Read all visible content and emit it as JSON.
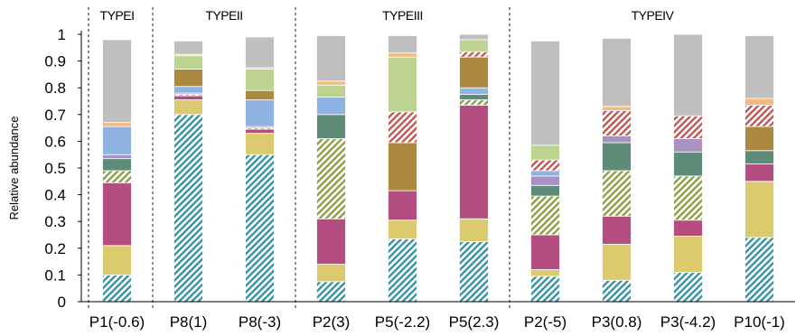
{
  "chart_data": {
    "type": "bar",
    "stacked": true,
    "ylabel": "Relative  abundance",
    "ylim": [
      0,
      1
    ],
    "yticks": [
      "0",
      "0.1",
      "0.2",
      "0.3",
      "0.4",
      "0.5",
      "0.6",
      "0.7",
      "0.8",
      "0.9",
      "1"
    ],
    "grid": false,
    "legend": "none",
    "groups": [
      {
        "label": "TYPEI",
        "categories": [
          "P1(-0.6)"
        ]
      },
      {
        "label": "TYPEII",
        "categories": [
          "P8(1)",
          "P8(-3)"
        ]
      },
      {
        "label": "TYPEIII",
        "categories": [
          "P2(3)",
          "P5(-2.2)",
          "P5(2.3)"
        ]
      },
      {
        "label": "TYPEIV",
        "categories": [
          "P2(-5)",
          "P3(0.8)",
          "P3(-4.2)",
          "P10(-1)"
        ]
      }
    ],
    "categories": [
      "P1(-0.6)",
      "P8(1)",
      "P8(-3)",
      "P2(3)",
      "P5(-2.2)",
      "P5(2.3)",
      "P2(-5)",
      "P3(0.8)",
      "P3(-4.2)",
      "P10(-1)"
    ],
    "series": [
      {
        "color": "#2e8fa3",
        "pattern": "hatch",
        "values": [
          0.1,
          0.7,
          0.55,
          0.075,
          0.235,
          0.225,
          0.095,
          0.08,
          0.11,
          0.24
        ]
      },
      {
        "color": "#dccb6e",
        "pattern": "solid",
        "values": [
          0.11,
          0.055,
          0.08,
          0.065,
          0.07,
          0.085,
          0.025,
          0.135,
          0.135,
          0.21
        ]
      },
      {
        "color": "#b44e80",
        "pattern": "solid",
        "values": [
          0.235,
          0.015,
          0.015,
          0.17,
          0.11,
          0.425,
          0.13,
          0.105,
          0.06,
          0.065
        ]
      },
      {
        "color": "#8a9a3c",
        "pattern": "hatch",
        "values": [
          0.045,
          0.005,
          0.005,
          0.3,
          0.0,
          0.02,
          0.145,
          0.17,
          0.165,
          0.0
        ]
      },
      {
        "color": "#5e8c78",
        "pattern": "solid",
        "values": [
          0.045,
          0.0,
          0.0,
          0.09,
          0.0,
          0.02,
          0.04,
          0.105,
          0.09,
          0.05
        ]
      },
      {
        "color": "#a992c2",
        "pattern": "solid",
        "values": [
          0.015,
          0.005,
          0.005,
          0.0,
          0.0,
          0.0,
          0.035,
          0.025,
          0.05,
          0.0
        ]
      },
      {
        "color": "#8fb4e3",
        "pattern": "solid",
        "values": [
          0.105,
          0.025,
          0.1,
          0.065,
          0.0,
          0.025,
          0.02,
          0.0,
          0.0,
          0.0
        ]
      },
      {
        "color": "#ab8a3f",
        "pattern": "solid",
        "values": [
          0.0,
          0.065,
          0.035,
          0.0,
          0.18,
          0.115,
          0.0,
          0.0,
          0.0,
          0.09
        ]
      },
      {
        "color": "#c0504d",
        "pattern": "hatch",
        "values": [
          0.0,
          0.0,
          0.0,
          0.0,
          0.115,
          0.02,
          0.04,
          0.095,
          0.085,
          0.08
        ]
      },
      {
        "color": "#bcd490",
        "pattern": "solid",
        "values": [
          0.0,
          0.05,
          0.08,
          0.045,
          0.205,
          0.045,
          0.055,
          0.0,
          0.0,
          0.0
        ]
      },
      {
        "color": "#f5b979",
        "pattern": "solid",
        "values": [
          0.015,
          0.005,
          0.005,
          0.015,
          0.015,
          0.0,
          0.0,
          0.015,
          0.0,
          0.025
        ]
      },
      {
        "color": "#bfbfbf",
        "pattern": "solid",
        "values": [
          0.31,
          0.05,
          0.115,
          0.17,
          0.065,
          0.02,
          0.39,
          0.255,
          0.305,
          0.235
        ]
      }
    ]
  }
}
